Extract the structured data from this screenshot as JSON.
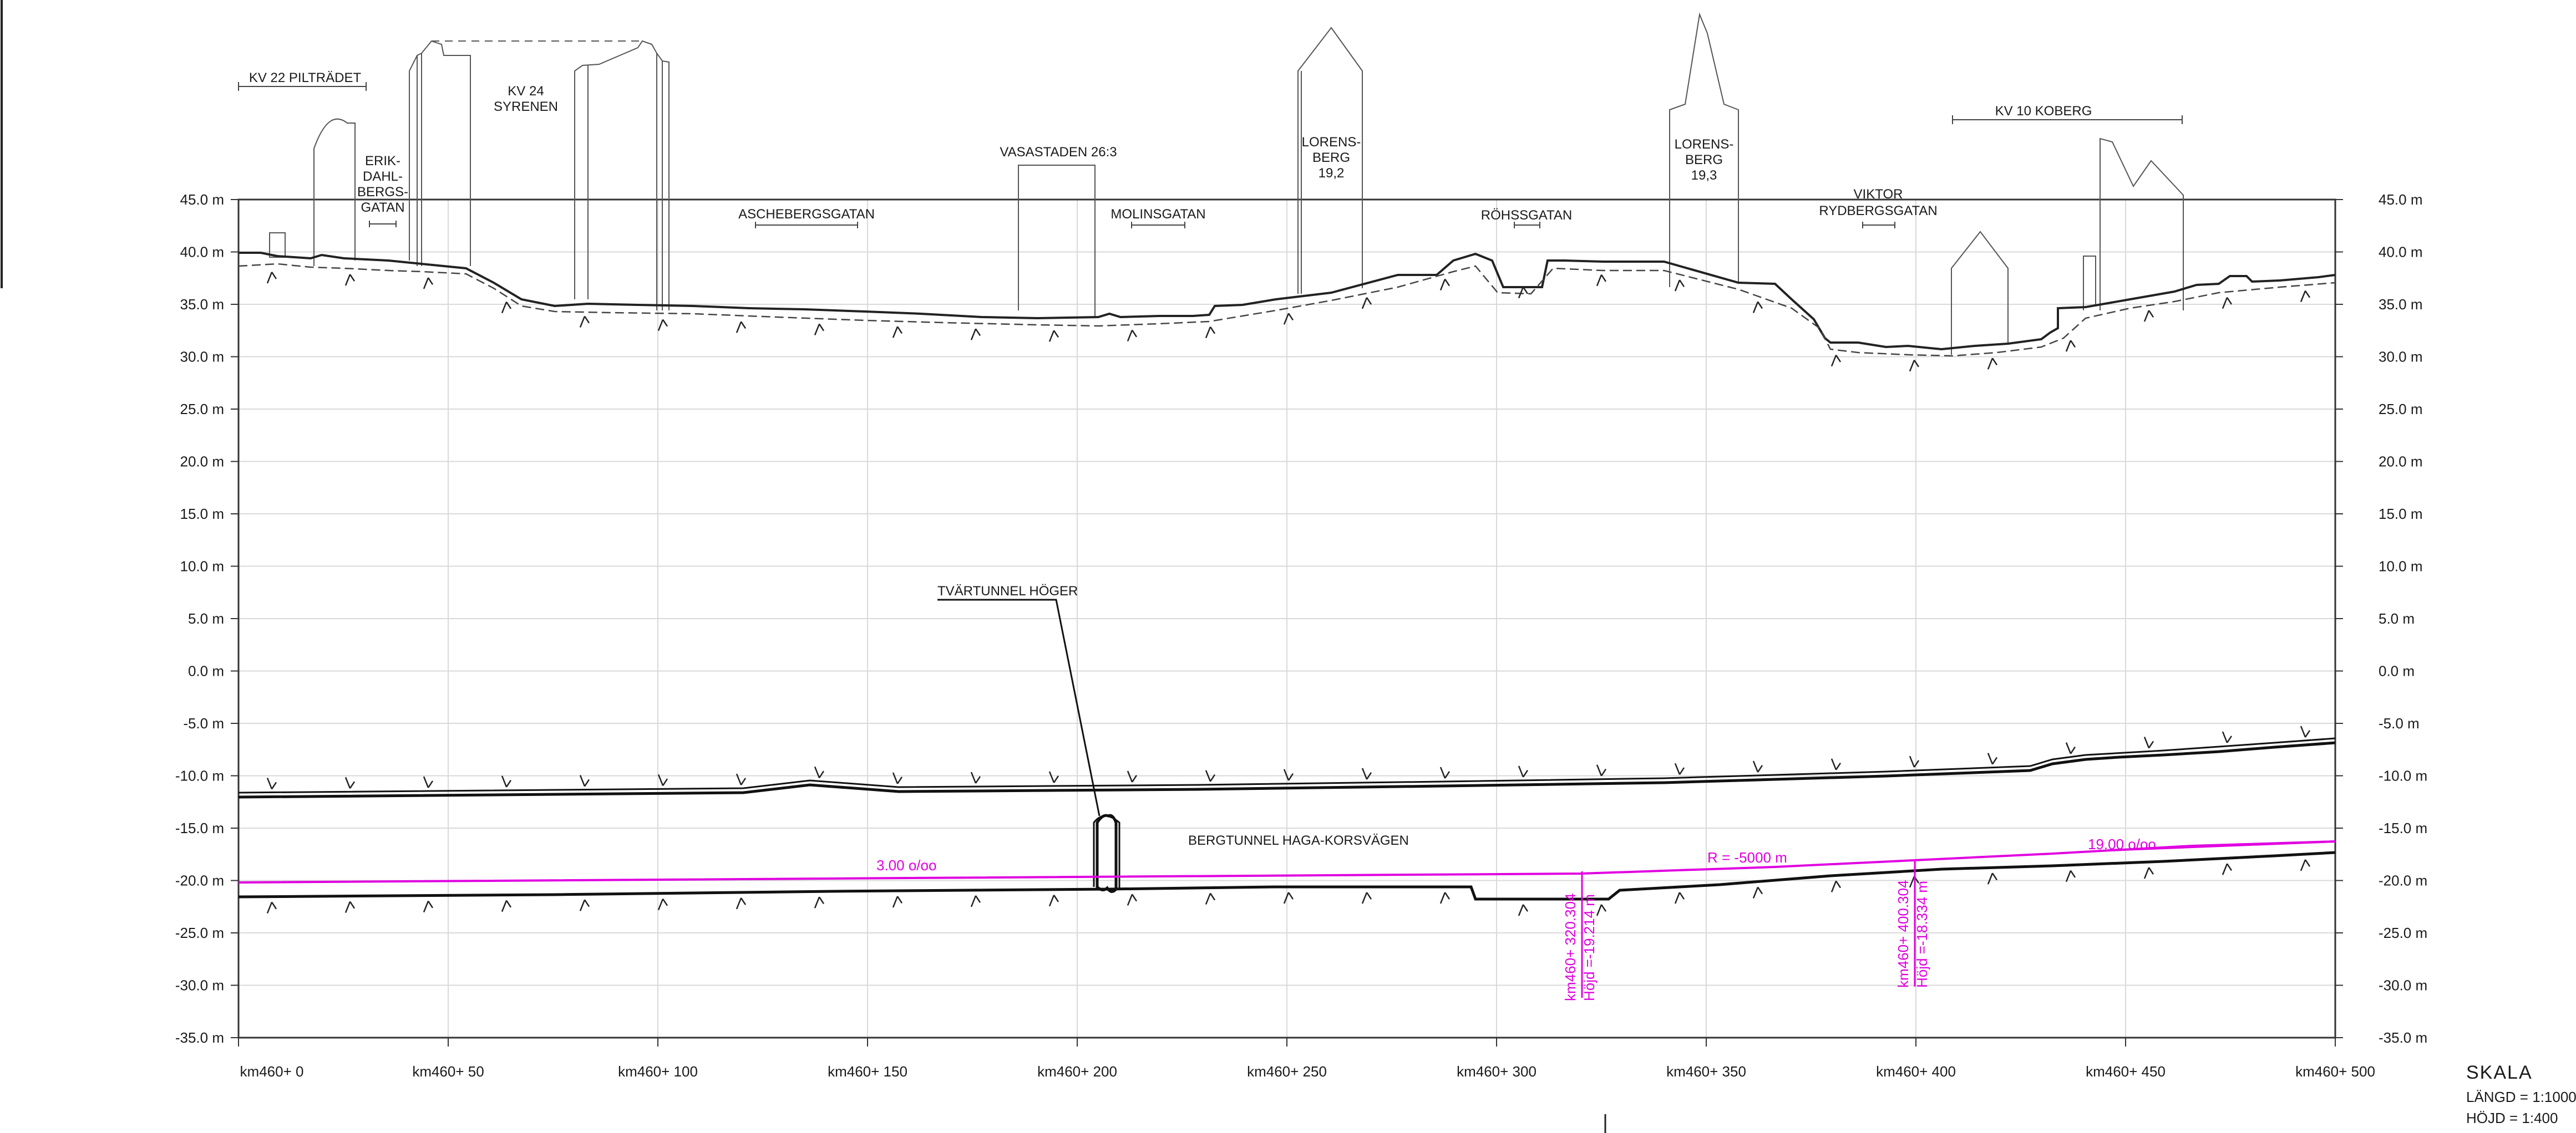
{
  "profile": {
    "y_axis": {
      "ticks": [
        "45.0 m",
        "40.0 m",
        "35.0 m",
        "30.0 m",
        "25.0 m",
        "20.0 m",
        "15.0 m",
        "10.0 m",
        "5.0 m",
        "0.0 m",
        "-5.0 m",
        "-10.0 m",
        "-15.0 m",
        "-20.0 m",
        "-25.0 m",
        "-30.0 m",
        "-35.0 m"
      ],
      "min": -35,
      "max": 45,
      "step": 5
    },
    "x_axis": {
      "ticks": [
        "km460+ 0",
        "km460+ 50",
        "km460+ 100",
        "km460+ 150",
        "km460+ 200",
        "km460+ 250",
        "km460+ 300",
        "km460+ 350",
        "km460+ 400",
        "km460+ 450",
        "km460+ 500"
      ],
      "min": 0,
      "max": 500,
      "step": 50
    },
    "labels": {
      "kv22": "KV 22 PILTRÄDET",
      "erik": [
        "ERIK-",
        "DAHL-",
        "BERGS-",
        "GATAN"
      ],
      "kv24": [
        "KV 24",
        "SYRENEN"
      ],
      "asche": "ASCHEBERGSGATAN",
      "vasa": "VASASTADEN 26:3",
      "molin": "MOLINSGATAN",
      "lor192": [
        "LORENS-",
        "BERG",
        "19,2"
      ],
      "rohss": "RÖHSSGATAN",
      "lor193": [
        "LORENS-",
        "BERG",
        "19,3"
      ],
      "viktor": [
        "VIKTOR",
        "RYDBERGSGATAN"
      ],
      "kv10": "KV 10 KOBERG",
      "tvar": "TVÄRTUNNEL HÖGER",
      "berg": "BERGTUNNEL HAGA-KORSVÄGEN"
    },
    "alignment": {
      "grade_left": "3.00 o/oo",
      "radius": "R = -5000 m",
      "grade_right": "19.00 o/oo",
      "point1": [
        "km460+ 320.304",
        "Höjd =-19.214 m"
      ],
      "point2": [
        "km460+ 400.304",
        "Höjd =-18.334 m"
      ],
      "color": "#e000e0"
    },
    "scale": {
      "title": "SKALA",
      "length": "LÄNGD = 1:1000",
      "height": "HÖJD = 1:400"
    }
  }
}
